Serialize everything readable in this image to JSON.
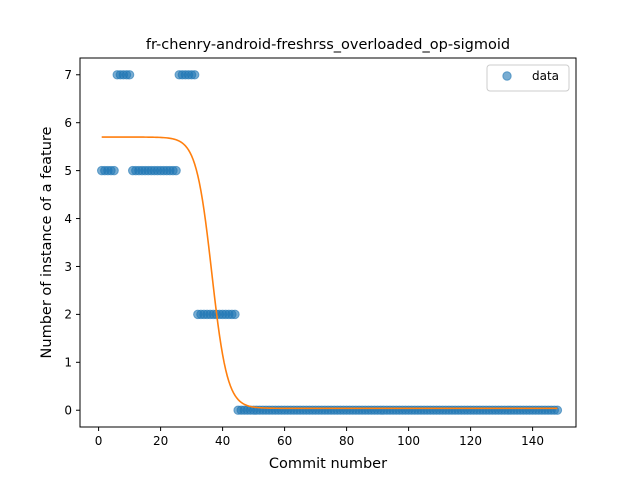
{
  "chart_data": {
    "type": "scatter",
    "title": "fr-chenry-android-freshrss_overloaded_op-sigmoid",
    "xlabel": "Commit number",
    "ylabel": "Number of instance of a feature",
    "xlim": [
      -6,
      154
    ],
    "ylim": [
      -0.35,
      7.35
    ],
    "xticks": [
      0,
      20,
      40,
      60,
      80,
      100,
      120,
      140
    ],
    "yticks": [
      0,
      1,
      2,
      3,
      4,
      5,
      6,
      7
    ],
    "legend": {
      "label": "data",
      "position": "top-right"
    },
    "colors": {
      "data": "#1f77b4",
      "fit": "#ff7f0e"
    },
    "series": [
      {
        "name": "data",
        "kind": "scatter",
        "points": [
          [
            1,
            5
          ],
          [
            2,
            5
          ],
          [
            3,
            5
          ],
          [
            4,
            5
          ],
          [
            5,
            5
          ],
          [
            6,
            7
          ],
          [
            7,
            7
          ],
          [
            8,
            7
          ],
          [
            9,
            7
          ],
          [
            10,
            7
          ],
          [
            11,
            5
          ],
          [
            12,
            5
          ],
          [
            13,
            5
          ],
          [
            14,
            5
          ],
          [
            15,
            5
          ],
          [
            16,
            5
          ],
          [
            17,
            5
          ],
          [
            18,
            5
          ],
          [
            19,
            5
          ],
          [
            20,
            5
          ],
          [
            21,
            5
          ],
          [
            22,
            5
          ],
          [
            23,
            5
          ],
          [
            24,
            5
          ],
          [
            25,
            5
          ],
          [
            26,
            7
          ],
          [
            27,
            7
          ],
          [
            28,
            7
          ],
          [
            29,
            7
          ],
          [
            30,
            7
          ],
          [
            31,
            7
          ],
          [
            32,
            2
          ],
          [
            33,
            2
          ],
          [
            34,
            2
          ],
          [
            35,
            2
          ],
          [
            36,
            2
          ],
          [
            37,
            2
          ],
          [
            38,
            2
          ],
          [
            39,
            2
          ],
          [
            40,
            2
          ],
          [
            41,
            2
          ],
          [
            42,
            2
          ],
          [
            43,
            2
          ],
          [
            44,
            2
          ],
          [
            45,
            0
          ],
          [
            46,
            0
          ],
          [
            47,
            0
          ],
          [
            48,
            0
          ],
          [
            49,
            0
          ],
          [
            50,
            0
          ],
          [
            51,
            0
          ],
          [
            52,
            0
          ],
          [
            53,
            0
          ],
          [
            54,
            0
          ],
          [
            55,
            0
          ],
          [
            56,
            0
          ],
          [
            57,
            0
          ],
          [
            58,
            0
          ],
          [
            59,
            0
          ],
          [
            60,
            0
          ],
          [
            61,
            0
          ],
          [
            62,
            0
          ],
          [
            63,
            0
          ],
          [
            64,
            0
          ],
          [
            65,
            0
          ],
          [
            66,
            0
          ],
          [
            67,
            0
          ],
          [
            68,
            0
          ],
          [
            69,
            0
          ],
          [
            70,
            0
          ],
          [
            71,
            0
          ],
          [
            72,
            0
          ],
          [
            73,
            0
          ],
          [
            74,
            0
          ],
          [
            75,
            0
          ],
          [
            76,
            0
          ],
          [
            77,
            0
          ],
          [
            78,
            0
          ],
          [
            79,
            0
          ],
          [
            80,
            0
          ],
          [
            81,
            0
          ],
          [
            82,
            0
          ],
          [
            83,
            0
          ],
          [
            84,
            0
          ],
          [
            85,
            0
          ],
          [
            86,
            0
          ],
          [
            87,
            0
          ],
          [
            88,
            0
          ],
          [
            89,
            0
          ],
          [
            90,
            0
          ],
          [
            91,
            0
          ],
          [
            92,
            0
          ],
          [
            93,
            0
          ],
          [
            94,
            0
          ],
          [
            95,
            0
          ],
          [
            96,
            0
          ],
          [
            97,
            0
          ],
          [
            98,
            0
          ],
          [
            99,
            0
          ],
          [
            100,
            0
          ],
          [
            101,
            0
          ],
          [
            102,
            0
          ],
          [
            103,
            0
          ],
          [
            104,
            0
          ],
          [
            105,
            0
          ],
          [
            106,
            0
          ],
          [
            107,
            0
          ],
          [
            108,
            0
          ],
          [
            109,
            0
          ],
          [
            110,
            0
          ],
          [
            111,
            0
          ],
          [
            112,
            0
          ],
          [
            113,
            0
          ],
          [
            114,
            0
          ],
          [
            115,
            0
          ],
          [
            116,
            0
          ],
          [
            117,
            0
          ],
          [
            118,
            0
          ],
          [
            119,
            0
          ],
          [
            120,
            0
          ],
          [
            121,
            0
          ],
          [
            122,
            0
          ],
          [
            123,
            0
          ],
          [
            124,
            0
          ],
          [
            125,
            0
          ],
          [
            126,
            0
          ],
          [
            127,
            0
          ],
          [
            128,
            0
          ],
          [
            129,
            0
          ],
          [
            130,
            0
          ],
          [
            131,
            0
          ],
          [
            132,
            0
          ],
          [
            133,
            0
          ],
          [
            134,
            0
          ],
          [
            135,
            0
          ],
          [
            136,
            0
          ],
          [
            137,
            0
          ],
          [
            138,
            0
          ],
          [
            139,
            0
          ],
          [
            140,
            0
          ],
          [
            141,
            0
          ],
          [
            142,
            0
          ],
          [
            143,
            0
          ],
          [
            144,
            0
          ],
          [
            145,
            0
          ],
          [
            146,
            0
          ],
          [
            147,
            0
          ],
          [
            148,
            0
          ]
        ]
      },
      {
        "kind": "line",
        "sigmoid": {
          "L": 5.66,
          "x0": 36.5,
          "k": 0.4,
          "b": 0.04
        },
        "xrange": [
          1,
          148
        ]
      }
    ]
  }
}
